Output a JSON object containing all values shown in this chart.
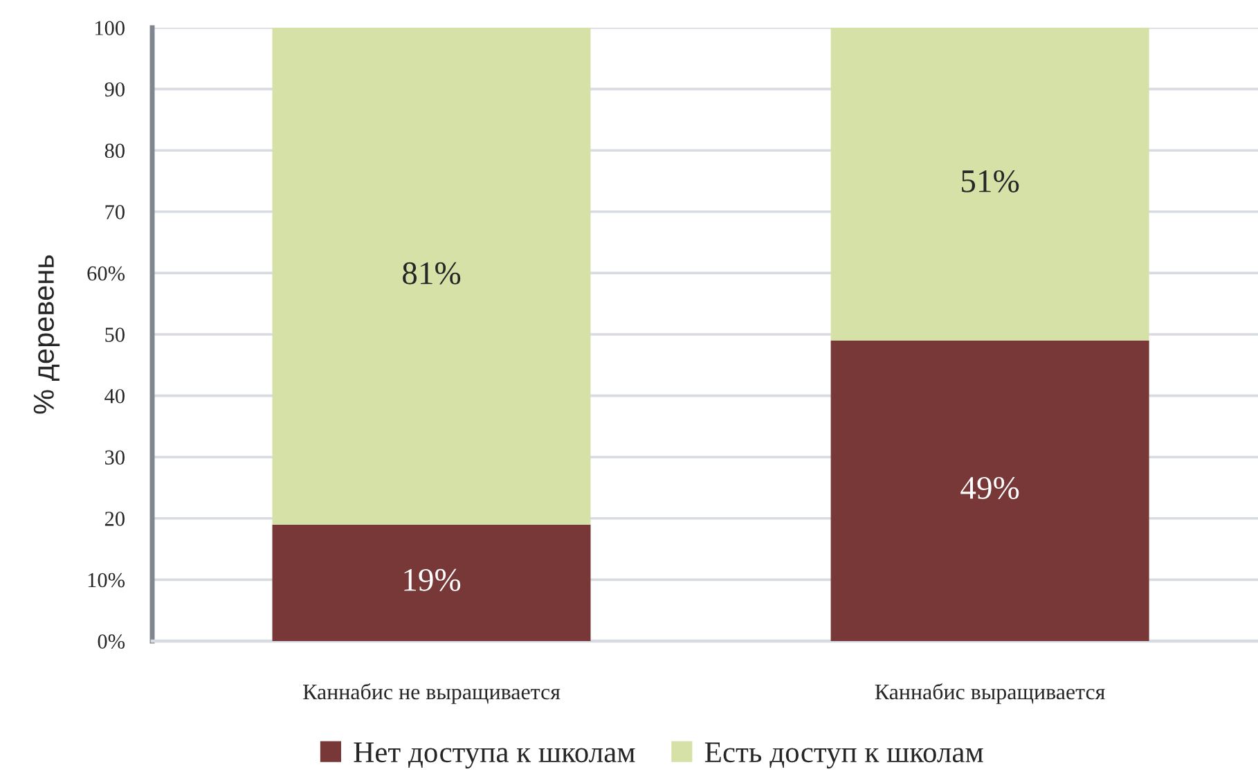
{
  "chart_data": {
    "type": "bar",
    "stacked": true,
    "ylabel": "% деревень",
    "categories": [
      "Каннабис не выращивается",
      "Каннабис выращивается"
    ],
    "series": [
      {
        "name": "Нет доступа к школам",
        "color": "#783838",
        "values": [
          19,
          49
        ],
        "value_labels": [
          "19%",
          "49%"
        ]
      },
      {
        "name": "Есть доступ к школам",
        "color": "#d6e1a8",
        "values": [
          81,
          51
        ],
        "value_labels": [
          "81%",
          "51%"
        ]
      }
    ],
    "ylim": [
      0,
      100
    ],
    "yticks": [
      {
        "value": 0,
        "label": "0%"
      },
      {
        "value": 10,
        "label": "10%"
      },
      20,
      30,
      40,
      50,
      {
        "value": 60,
        "label": "60%"
      },
      70,
      80,
      90,
      100
    ],
    "grid": "y",
    "legend": "bottom"
  }
}
